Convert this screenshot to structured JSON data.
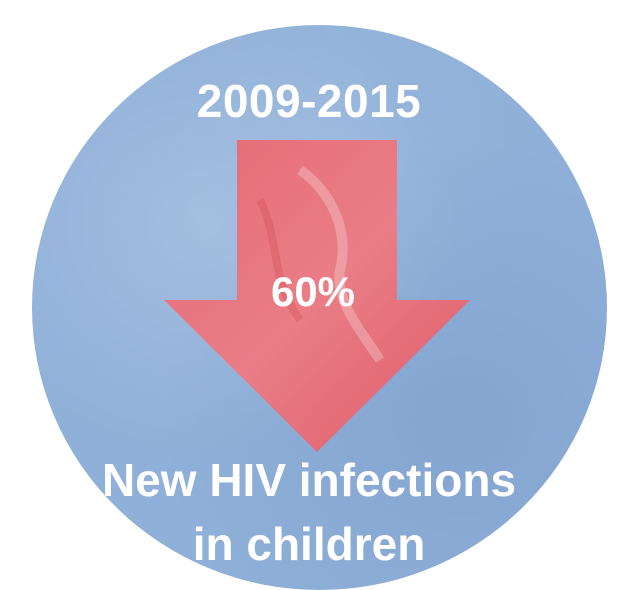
{
  "period": "2009-2015",
  "change_percent": "60%",
  "caption": {
    "line1": "New HIV infections",
    "line2": "in children"
  },
  "colors": {
    "circle": "#8fb0d8",
    "arrow": "#e8606a",
    "text": "#ffffff"
  },
  "icon": "down-arrow-icon"
}
